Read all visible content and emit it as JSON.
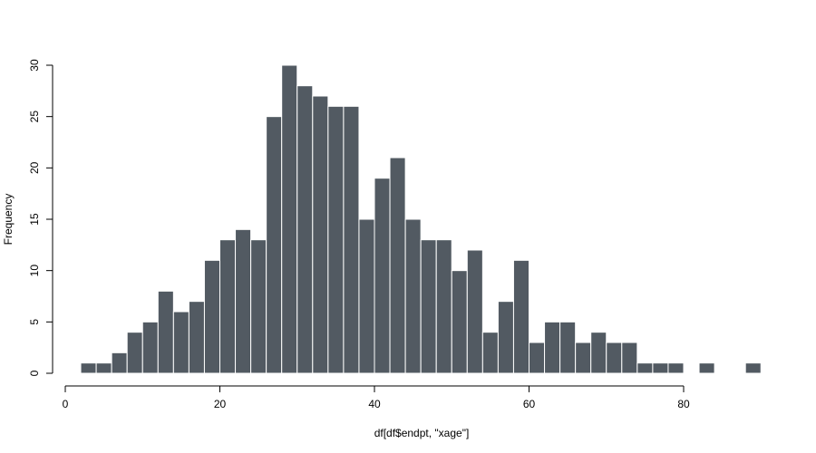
{
  "chart_data": {
    "type": "bar",
    "subtype": "histogram",
    "xlabel": "df[df$endpt, \"xage\"]",
    "ylabel": "Frequency",
    "bin_width": 2,
    "bin_start": 2,
    "values": [
      1,
      1,
      2,
      4,
      5,
      8,
      6,
      7,
      11,
      13,
      14,
      13,
      25,
      30,
      28,
      27,
      26,
      26,
      15,
      19,
      21,
      15,
      13,
      13,
      10,
      12,
      4,
      7,
      11,
      3,
      5,
      5,
      3,
      4,
      3,
      3,
      1,
      1,
      1,
      0,
      1,
      0,
      0,
      1
    ],
    "xlim": [
      0,
      80
    ],
    "ylim": [
      0,
      30
    ],
    "x_ticks": [
      "0",
      "20",
      "40",
      "60",
      "80"
    ],
    "y_ticks": [
      "0",
      "5",
      "10",
      "15",
      "20",
      "25",
      "30"
    ],
    "grid": false,
    "colors": {
      "bar": "#525a62",
      "bar_border": "#ffffff",
      "axis": "#000000"
    }
  }
}
